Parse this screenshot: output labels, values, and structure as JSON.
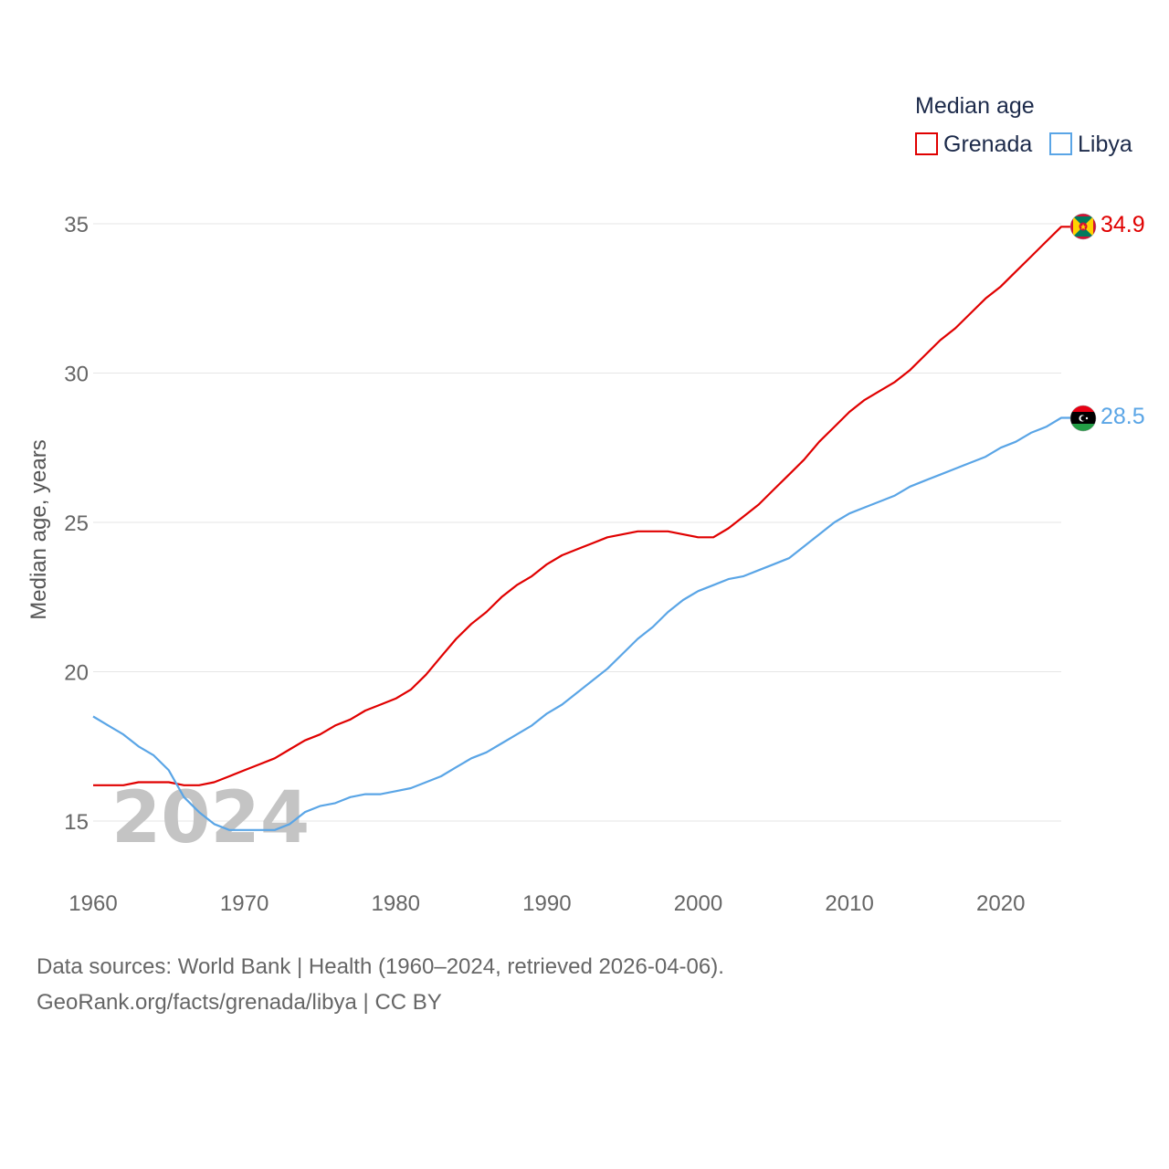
{
  "chart_data": {
    "type": "line",
    "title": "Median age",
    "xlabel": "",
    "ylabel": "Median age, years",
    "xlim": [
      1960,
      2024
    ],
    "ylim": [
      13.5,
      36
    ],
    "x_ticks": [
      1960,
      1970,
      1980,
      1990,
      2000,
      2010,
      2020
    ],
    "y_ticks": [
      15,
      20,
      25,
      30,
      35
    ],
    "grid": true,
    "legend_position": "top-right",
    "year_watermark": "2024",
    "x": [
      1960,
      1961,
      1962,
      1963,
      1964,
      1965,
      1966,
      1967,
      1968,
      1969,
      1970,
      1971,
      1972,
      1973,
      1974,
      1975,
      1976,
      1977,
      1978,
      1979,
      1980,
      1981,
      1982,
      1983,
      1984,
      1985,
      1986,
      1987,
      1988,
      1989,
      1990,
      1991,
      1992,
      1993,
      1994,
      1995,
      1996,
      1997,
      1998,
      1999,
      2000,
      2001,
      2002,
      2003,
      2004,
      2005,
      2006,
      2007,
      2008,
      2009,
      2010,
      2011,
      2012,
      2013,
      2014,
      2015,
      2016,
      2017,
      2018,
      2019,
      2020,
      2021,
      2022,
      2023,
      2024
    ],
    "series": [
      {
        "name": "Grenada",
        "color": "#e00000",
        "end_label": "34.9",
        "values": [
          16.2,
          16.2,
          16.2,
          16.3,
          16.3,
          16.3,
          16.2,
          16.2,
          16.3,
          16.5,
          16.7,
          16.9,
          17.1,
          17.4,
          17.7,
          17.9,
          18.2,
          18.4,
          18.7,
          18.9,
          19.1,
          19.4,
          19.9,
          20.5,
          21.1,
          21.6,
          22.0,
          22.5,
          22.9,
          23.2,
          23.6,
          23.9,
          24.1,
          24.3,
          24.5,
          24.6,
          24.7,
          24.7,
          24.7,
          24.6,
          24.5,
          24.5,
          24.8,
          25.2,
          25.6,
          26.1,
          26.6,
          27.1,
          27.7,
          28.2,
          28.7,
          29.1,
          29.4,
          29.7,
          30.1,
          30.6,
          31.1,
          31.5,
          32.0,
          32.5,
          32.9,
          33.4,
          33.9,
          34.4,
          34.9
        ]
      },
      {
        "name": "Libya",
        "color": "#5aa5e6",
        "end_label": "28.5",
        "values": [
          18.5,
          18.2,
          17.9,
          17.5,
          17.2,
          16.7,
          15.8,
          15.3,
          14.9,
          14.7,
          14.7,
          14.7,
          14.7,
          14.9,
          15.3,
          15.5,
          15.6,
          15.8,
          15.9,
          15.9,
          16.0,
          16.1,
          16.3,
          16.5,
          16.8,
          17.1,
          17.3,
          17.6,
          17.9,
          18.2,
          18.6,
          18.9,
          19.3,
          19.7,
          20.1,
          20.6,
          21.1,
          21.5,
          22.0,
          22.4,
          22.7,
          22.9,
          23.1,
          23.2,
          23.4,
          23.6,
          23.8,
          24.2,
          24.6,
          25.0,
          25.3,
          25.5,
          25.7,
          25.9,
          26.2,
          26.4,
          26.6,
          26.8,
          27.0,
          27.2,
          27.5,
          27.7,
          28.0,
          28.2,
          28.5
        ]
      }
    ]
  },
  "footer": {
    "line1": "Data sources: World Bank | Health (1960–2024, retrieved 2026-04-06).",
    "line2": "GeoRank.org/facts/grenada/libya | CC BY"
  }
}
